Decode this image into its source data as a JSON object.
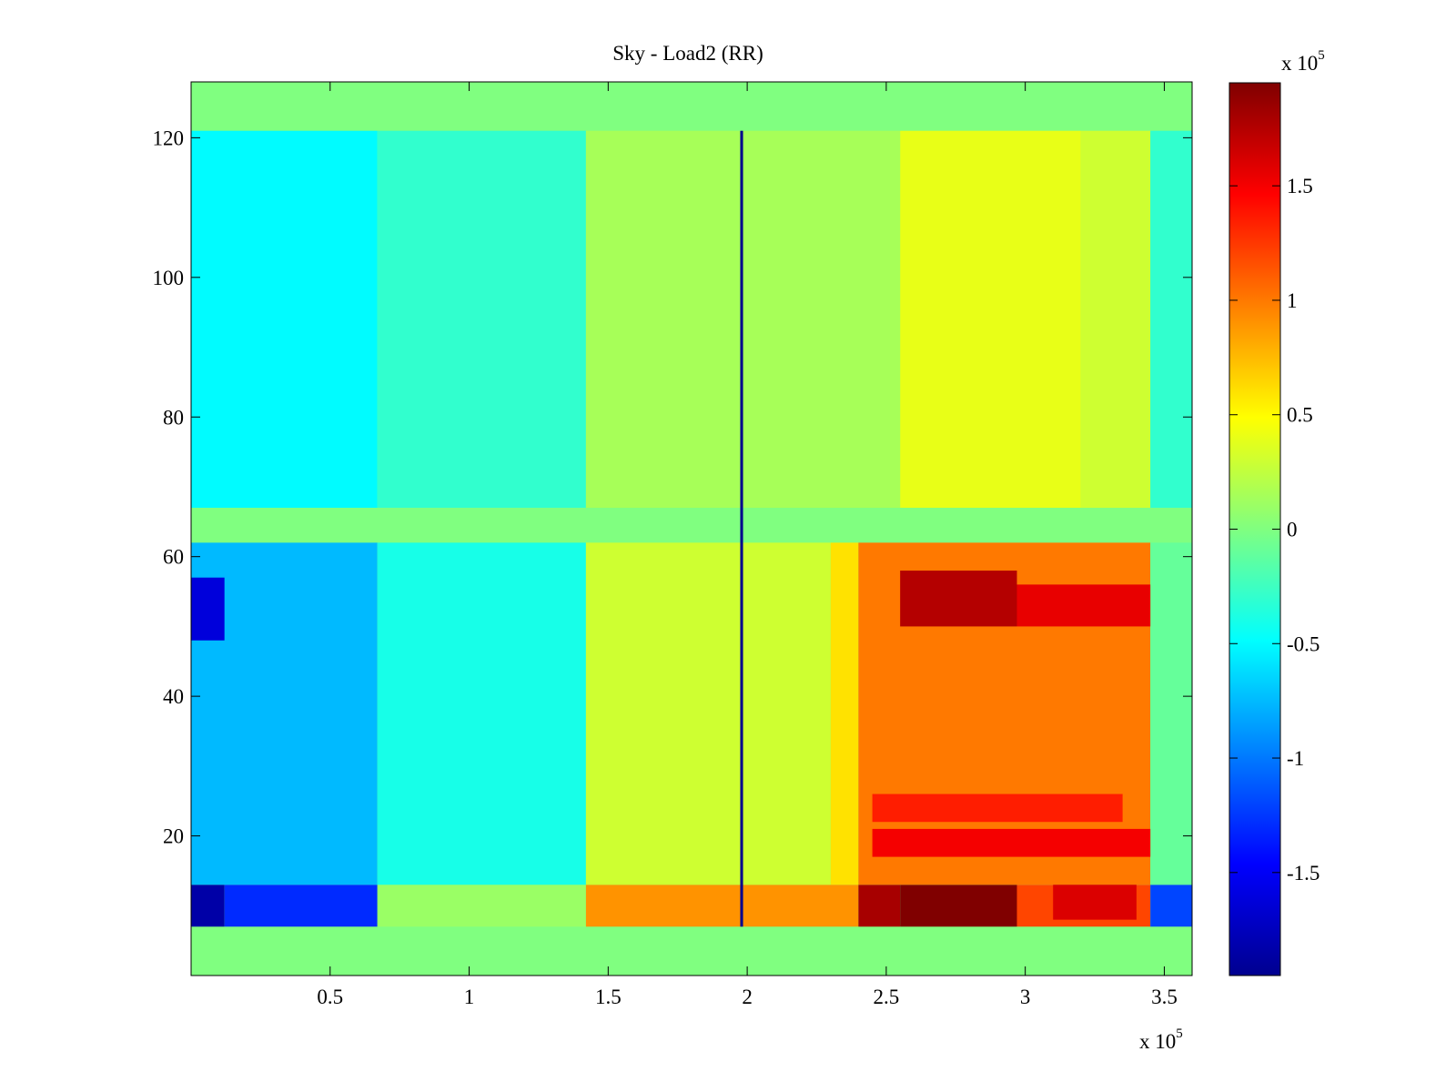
{
  "chart_data": {
    "type": "heatmap",
    "title": "Sky - Load2 (RR)",
    "xlabel": "",
    "ylabel": "",
    "x_multiplier": "x 10",
    "x_multiplier_exp": "5",
    "xlim": [
      0,
      3.6
    ],
    "ylim": [
      0,
      128
    ],
    "xticks": [
      0.5,
      1,
      1.5,
      2,
      2.5,
      3,
      3.5
    ],
    "xtick_labels": [
      "0.5",
      "1",
      "1.5",
      "2",
      "2.5",
      "3",
      "3.5"
    ],
    "yticks": [
      20,
      40,
      60,
      80,
      100,
      120
    ],
    "ytick_labels": [
      "20",
      "40",
      "60",
      "80",
      "100",
      "120"
    ],
    "colormap": "jet",
    "color_range": [
      -1.95,
      1.95
    ],
    "colorbar": {
      "multiplier": "x 10",
      "multiplier_exp": "5",
      "ticks": [
        1.5,
        1,
        0.5,
        0,
        -0.5,
        -1,
        -1.5
      ],
      "tick_labels": [
        "1.5",
        "1",
        "0.5",
        "0",
        "-0.5",
        "-1",
        "-1.5"
      ]
    },
    "empty_rows_value": 0,
    "empty_row_bands": [
      [
        0,
        7
      ],
      [
        62,
        67
      ],
      [
        121,
        128
      ]
    ],
    "data_row_bands": [
      [
        7,
        62
      ],
      [
        67,
        121
      ]
    ],
    "cells": [
      {
        "x": [
          0,
          0.12
        ],
        "y": [
          7,
          13
        ],
        "value": -1.8
      },
      {
        "x": [
          0.12,
          0.67
        ],
        "y": [
          7,
          13
        ],
        "value": -1.3
      },
      {
        "x": [
          0.67,
          1.42
        ],
        "y": [
          7,
          13
        ],
        "value": 0.1
      },
      {
        "x": [
          1.42,
          2.4
        ],
        "y": [
          7,
          13
        ],
        "value": 0.9
      },
      {
        "x": [
          2.4,
          2.55
        ],
        "y": [
          7,
          13
        ],
        "value": 1.8
      },
      {
        "x": [
          2.55,
          2.97
        ],
        "y": [
          7,
          13
        ],
        "value": 1.95
      },
      {
        "x": [
          2.97,
          3.45
        ],
        "y": [
          7,
          13
        ],
        "value": 1.2
      },
      {
        "x": [
          3.45,
          3.6
        ],
        "y": [
          7,
          13
        ],
        "value": -1.2
      },
      {
        "x": [
          0,
          0.67
        ],
        "y": [
          13,
          62
        ],
        "value": -0.75
      },
      {
        "x": [
          0.67,
          1.42
        ],
        "y": [
          13,
          62
        ],
        "value": -0.4
      },
      {
        "x": [
          1.42,
          2.3
        ],
        "y": [
          13,
          62
        ],
        "value": 0.3
      },
      {
        "x": [
          2.3,
          2.4
        ],
        "y": [
          13,
          62
        ],
        "value": 0.6
      },
      {
        "x": [
          2.4,
          3.45
        ],
        "y": [
          13,
          62
        ],
        "value": 1.0
      },
      {
        "x": [
          3.45,
          3.6
        ],
        "y": [
          13,
          62
        ],
        "value": -0.1
      },
      {
        "x": [
          2.55,
          2.97
        ],
        "y": [
          50,
          58
        ],
        "value": 1.75
      },
      {
        "x": [
          2.97,
          3.45
        ],
        "y": [
          50,
          56
        ],
        "value": 1.55
      },
      {
        "x": [
          2.45,
          3.45
        ],
        "y": [
          17,
          21
        ],
        "value": 1.5
      },
      {
        "x": [
          2.45,
          3.35
        ],
        "y": [
          22,
          26
        ],
        "value": 1.35
      },
      {
        "x": [
          3.1,
          3.4
        ],
        "y": [
          8,
          13
        ],
        "value": 1.6
      },
      {
        "x": [
          0,
          0.12
        ],
        "y": [
          48,
          57
        ],
        "value": -1.6
      },
      {
        "x": [
          0,
          0.67
        ],
        "y": [
          67,
          121
        ],
        "value": -0.5
      },
      {
        "x": [
          0.67,
          1.42
        ],
        "y": [
          67,
          121
        ],
        "value": -0.3
      },
      {
        "x": [
          1.42,
          2.55
        ],
        "y": [
          67,
          121
        ],
        "value": 0.15
      },
      {
        "x": [
          2.55,
          3.2
        ],
        "y": [
          67,
          121
        ],
        "value": 0.4
      },
      {
        "x": [
          3.2,
          3.45
        ],
        "y": [
          67,
          121
        ],
        "value": 0.3
      },
      {
        "x": [
          3.45,
          3.6
        ],
        "y": [
          67,
          121
        ],
        "value": -0.3
      },
      {
        "x": [
          1.975,
          1.985
        ],
        "y": [
          7,
          121
        ],
        "value": -1.9
      }
    ]
  }
}
